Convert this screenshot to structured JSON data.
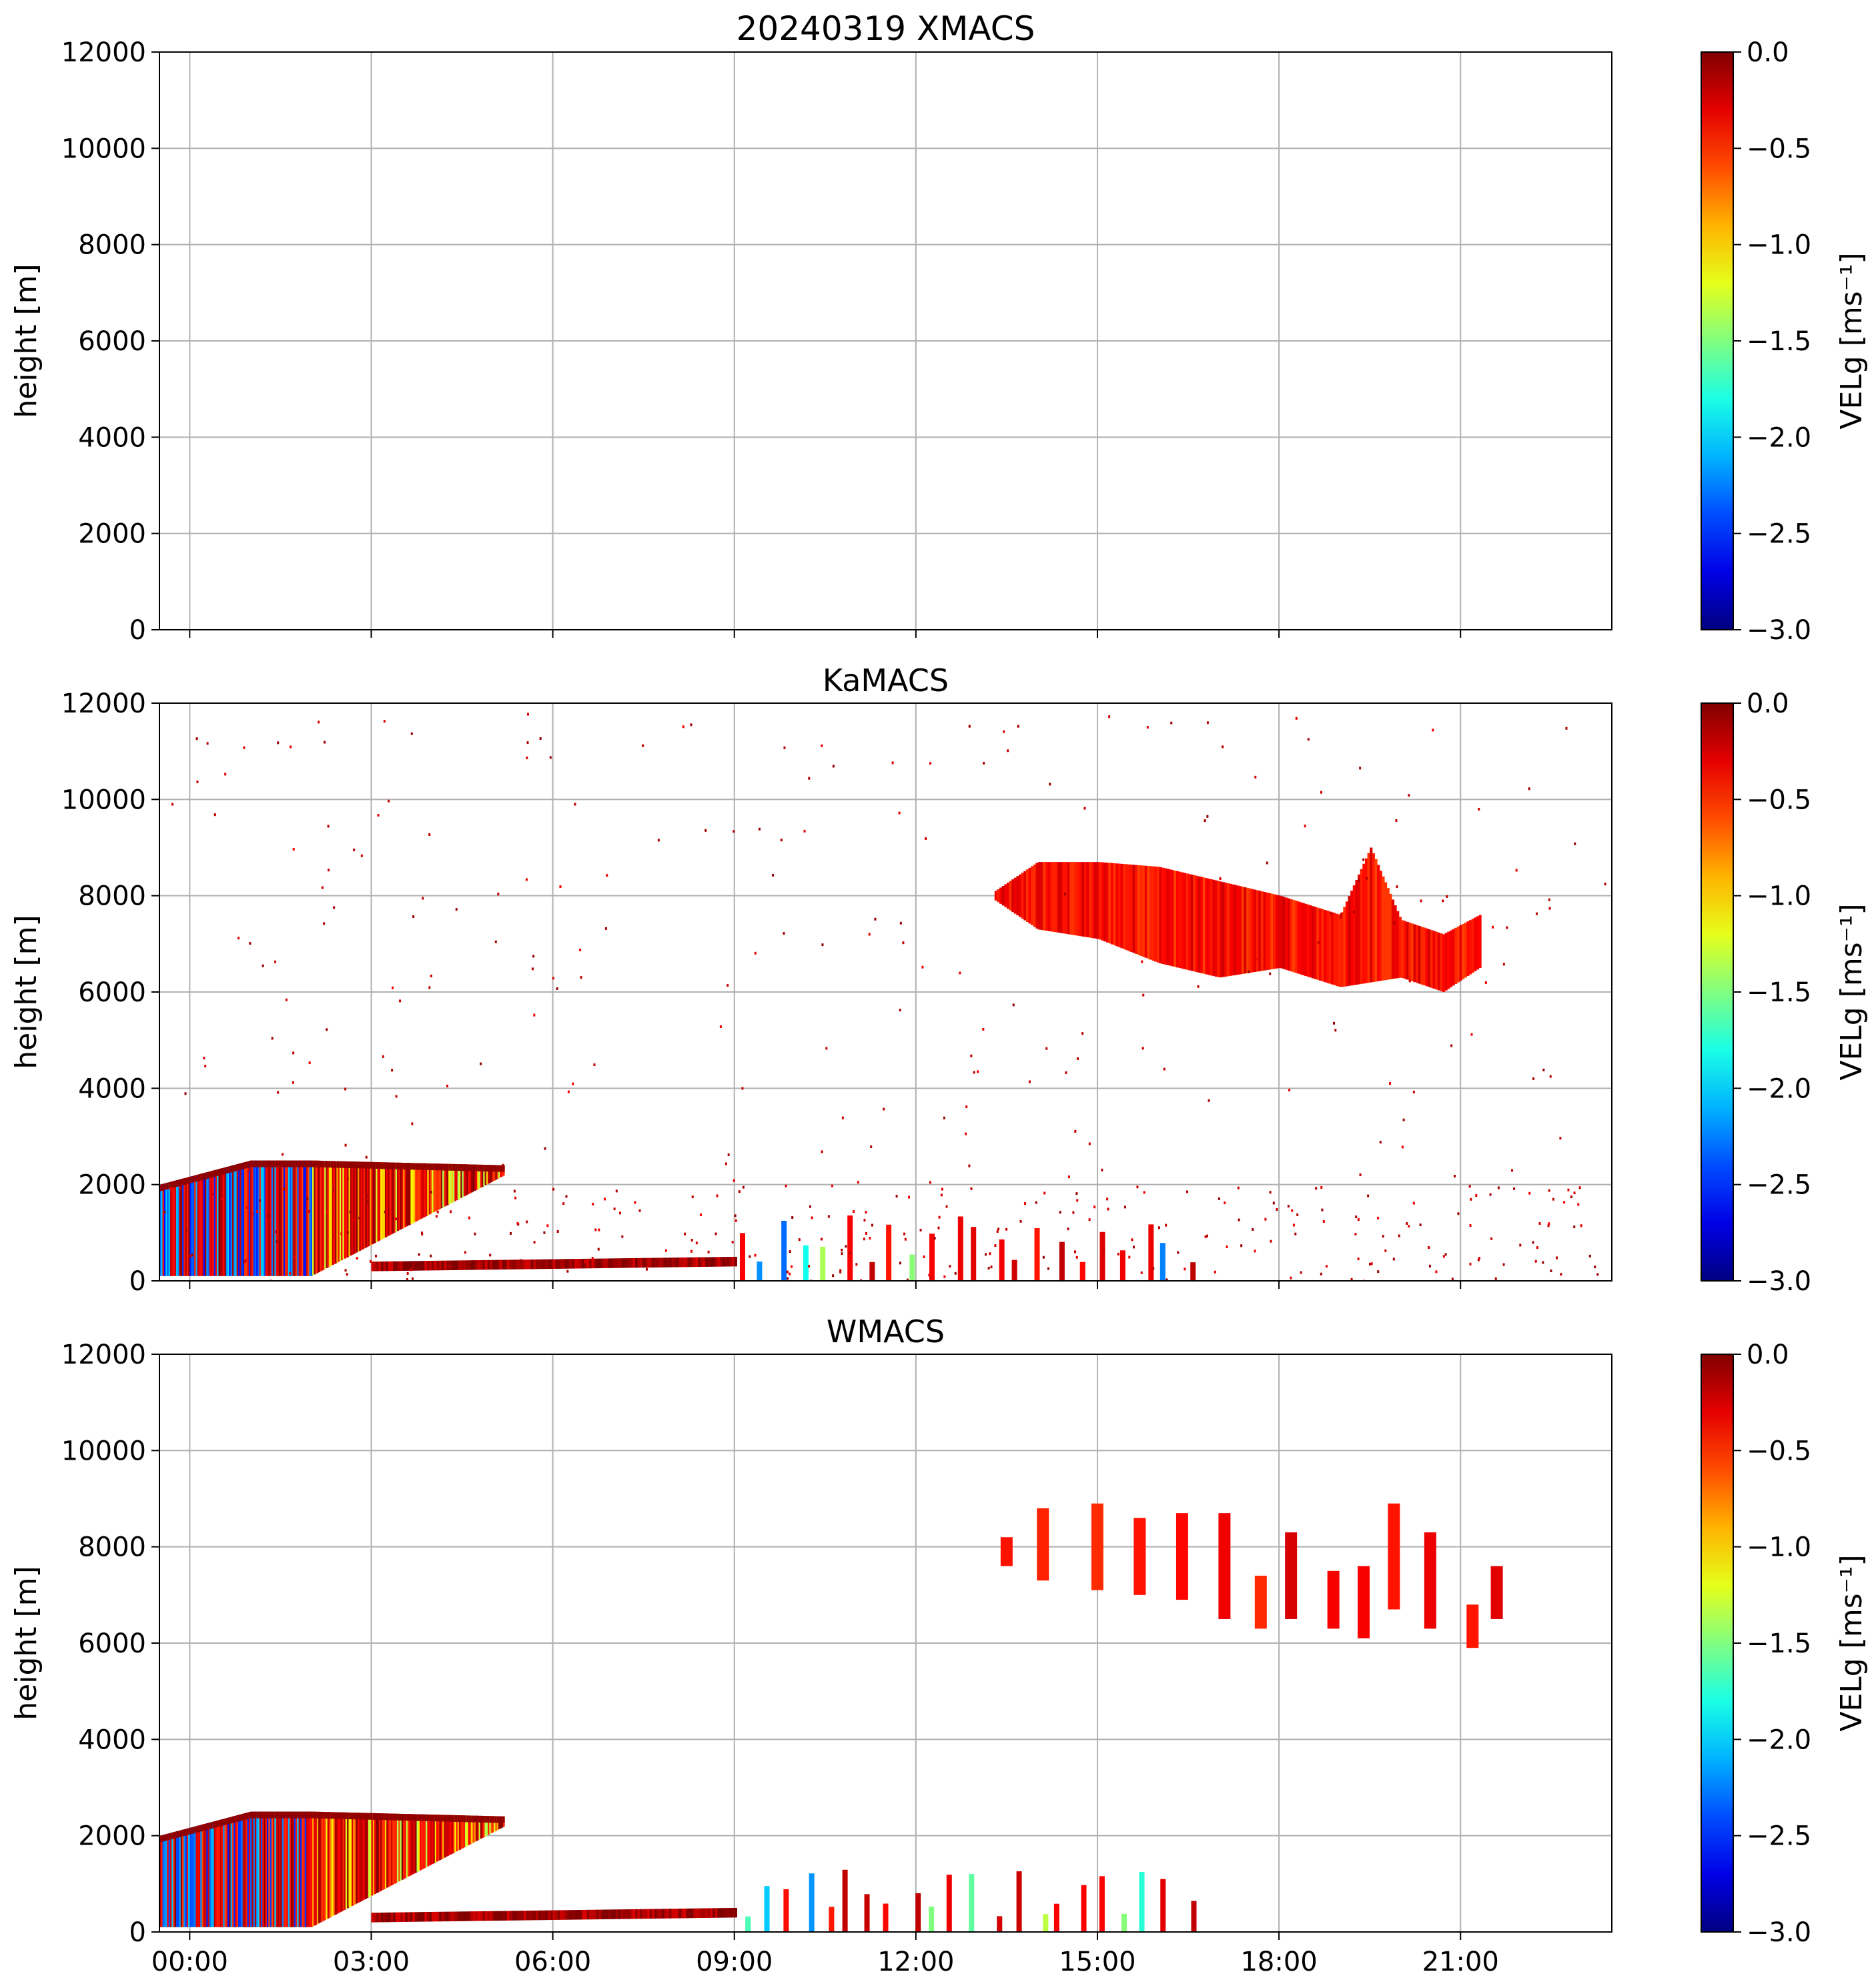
{
  "colors": {
    "colormap": "jet",
    "grid": "#b0b0b0",
    "axes": "#000000",
    "background": "#ffffff"
  },
  "chart_data": [
    {
      "type": "heatmap",
      "title": "20240319 XMACS",
      "xlabel": "",
      "ylabel": "height [m]",
      "xlim_hours": [
        -0.5,
        23.5
      ],
      "ylim": [
        0,
        12000
      ],
      "x_tick_labels": [
        "00:00",
        "03:00",
        "06:00",
        "09:00",
        "12:00",
        "15:00",
        "18:00",
        "21:00"
      ],
      "x_tick_labels_visible": false,
      "y_ticks": [
        0,
        2000,
        4000,
        6000,
        8000,
        10000,
        12000
      ],
      "grid": true,
      "colorbar": {
        "label": "VELg [ms⁻¹]",
        "vmin": -3.0,
        "vmax": 0.0,
        "ticks": [
          "0.0",
          "−0.5",
          "−1.0",
          "−1.5",
          "−2.0",
          "−2.5",
          "−3.0"
        ]
      },
      "regions": []
    },
    {
      "type": "heatmap",
      "title": "KaMACS",
      "xlabel": "",
      "ylabel": "height [m]",
      "xlim_hours": [
        -0.5,
        23.5
      ],
      "ylim": [
        0,
        12000
      ],
      "x_tick_labels": [
        "00:00",
        "03:00",
        "06:00",
        "09:00",
        "12:00",
        "15:00",
        "18:00",
        "21:00"
      ],
      "x_tick_labels_visible": false,
      "y_ticks": [
        0,
        2000,
        4000,
        6000,
        8000,
        10000,
        12000
      ],
      "grid": true,
      "colorbar": {
        "label": "VELg [ms⁻¹]",
        "vmin": -3.0,
        "vmax": 0.0,
        "ticks": [
          "0.0",
          "−0.5",
          "−1.0",
          "−1.5",
          "−2.0",
          "−2.5",
          "−3.0"
        ]
      },
      "regions": [
        {
          "kind": "upper-cloud",
          "t0": 13.3,
          "t1": 21.3,
          "base": [
            [
              13.3,
              7900
            ],
            [
              14.0,
              7300
            ],
            [
              15.0,
              7100
            ],
            [
              16.0,
              6600
            ],
            [
              17.0,
              6300
            ],
            [
              18.0,
              6500
            ],
            [
              19.0,
              6100
            ],
            [
              20.0,
              6300
            ],
            [
              20.7,
              6000
            ],
            [
              21.3,
              6500
            ]
          ],
          "top": [
            [
              13.3,
              8100
            ],
            [
              14.0,
              8700
            ],
            [
              15.0,
              8700
            ],
            [
              16.0,
              8600
            ],
            [
              17.0,
              8300
            ],
            [
              18.0,
              8000
            ],
            [
              19.0,
              7600
            ],
            [
              19.5,
              9000
            ],
            [
              20.0,
              7500
            ],
            [
              20.7,
              7200
            ],
            [
              21.3,
              7600
            ]
          ],
          "vel": -0.4
        },
        {
          "kind": "low-layer",
          "t0": -0.5,
          "t1": 5.2,
          "base": [
            [
              -0.5,
              100
            ],
            [
              2.0,
              100
            ],
            [
              5.2,
              2200
            ]
          ],
          "top": [
            [
              -0.5,
              2000
            ],
            [
              1.0,
              2500
            ],
            [
              2.0,
              2500
            ],
            [
              5.2,
              2400
            ]
          ],
          "vel": -0.9
        },
        {
          "kind": "surface-band",
          "t0": 3.0,
          "t1": 9.0,
          "base": [
            [
              3.0,
              200
            ],
            [
              9.0,
              300
            ]
          ],
          "top": [
            [
              3.0,
              400
            ],
            [
              9.0,
              500
            ]
          ],
          "vel": -0.1
        },
        {
          "kind": "isolated-cells",
          "t0": 9.0,
          "t1": 16.5,
          "top_m": 1400,
          "vel": -0.3
        },
        {
          "kind": "speckle",
          "t0": -0.5,
          "t1": 23.5,
          "ymax_m": 11800,
          "vel": -0.2
        }
      ]
    },
    {
      "type": "heatmap",
      "title": "WMACS",
      "xlabel": "",
      "ylabel": "height [m]",
      "xlim_hours": [
        -0.5,
        23.5
      ],
      "ylim": [
        0,
        12000
      ],
      "x_tick_labels": [
        "00:00",
        "03:00",
        "06:00",
        "09:00",
        "12:00",
        "15:00",
        "18:00",
        "21:00"
      ],
      "x_tick_labels_visible": true,
      "y_ticks": [
        0,
        2000,
        4000,
        6000,
        8000,
        10000,
        12000
      ],
      "grid": true,
      "colorbar": {
        "label": "VELg [ms⁻¹]",
        "vmin": -3.0,
        "vmax": 0.0,
        "ticks": [
          "0.0",
          "−0.5",
          "−1.0",
          "−1.5",
          "−2.0",
          "−2.5",
          "−3.0"
        ]
      },
      "regions": [
        {
          "kind": "upper-cloud-strips",
          "t0": 13.3,
          "t1": 21.3,
          "vel": -0.4
        },
        {
          "kind": "low-layer",
          "t0": -0.5,
          "t1": 5.2,
          "base": [
            [
              -0.5,
              100
            ],
            [
              2.0,
              100
            ],
            [
              5.2,
              2200
            ]
          ],
          "top": [
            [
              -0.5,
              2000
            ],
            [
              1.0,
              2500
            ],
            [
              2.0,
              2500
            ],
            [
              5.2,
              2400
            ]
          ],
          "vel": -0.9
        },
        {
          "kind": "surface-band",
          "t0": 3.0,
          "t1": 9.0,
          "base": [
            [
              3.0,
              200
            ],
            [
              9.0,
              300
            ]
          ],
          "top": [
            [
              3.0,
              400
            ],
            [
              9.0,
              500
            ]
          ],
          "vel": -0.1
        },
        {
          "kind": "isolated-cells",
          "t0": 9.0,
          "t1": 16.5,
          "top_m": 1300,
          "vel": -0.3
        }
      ]
    }
  ]
}
